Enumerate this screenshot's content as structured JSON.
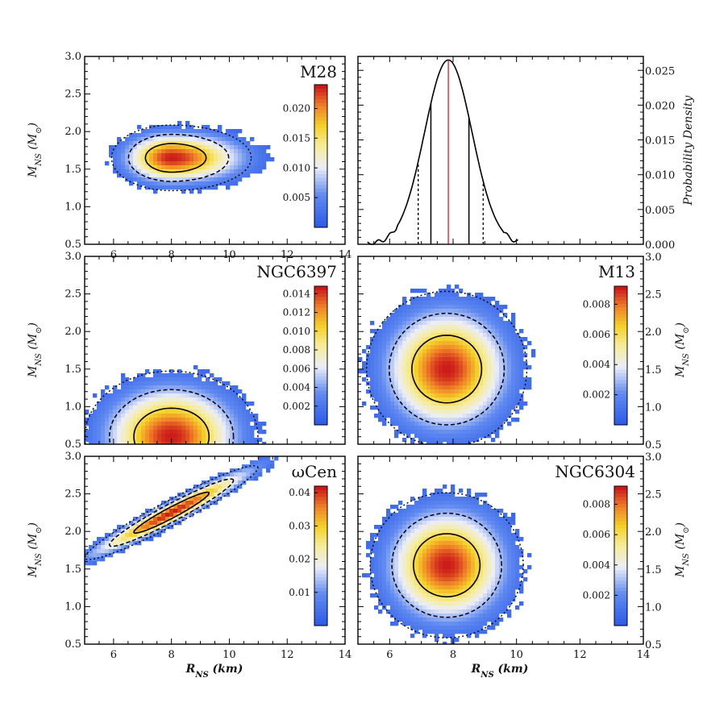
{
  "chart_data": [
    {
      "type": "heatmap",
      "panel": "top-left",
      "title": "M28",
      "xlim": [
        5,
        14
      ],
      "ylim": [
        0.5,
        3.0
      ],
      "xticks": [
        "6",
        "8",
        "10",
        "12",
        "14"
      ],
      "yticks": [
        "0.5",
        "1.0",
        "1.5",
        "2.0",
        "2.5",
        "3.0"
      ],
      "ylabel": "M_NS (M_⊙)",
      "peak": {
        "x": 8.0,
        "y": 1.65
      },
      "spread": {
        "sx": 1.2,
        "sy": 0.19
      },
      "colorbar": {
        "min": 0.0,
        "max": 0.024,
        "ticks": [
          "0.005",
          "0.010",
          "0.015",
          "0.020"
        ]
      }
    },
    {
      "type": "line",
      "panel": "top-right",
      "xlim": [
        5,
        14
      ],
      "ylim": [
        0.0,
        0.027
      ],
      "yticks": [
        "0.000",
        "0.005",
        "0.010",
        "0.015",
        "0.020",
        "0.025"
      ],
      "ylabel": "Probability Density",
      "peak_x": 7.85,
      "peak_y": 0.0265,
      "width": 0.75,
      "inner_interval": [
        7.3,
        8.5
      ],
      "outer_interval": [
        6.9,
        8.95
      ]
    },
    {
      "type": "heatmap",
      "panel": "middle-left",
      "title": "NGC6397",
      "xlim": [
        5,
        14
      ],
      "ylim": [
        0.5,
        3.0
      ],
      "yticks": [
        "0.5",
        "1.0",
        "1.5",
        "2.0",
        "2.5",
        "3.0"
      ],
      "ylabel": "M_NS (M_⊙)",
      "peak": {
        "x": 8.0,
        "y": 0.6
      },
      "spread": {
        "sx": 1.3,
        "sy": 0.38
      },
      "colorbar": {
        "min": 0.0,
        "max": 0.0148,
        "ticks": [
          "0.002",
          "0.004",
          "0.006",
          "0.008",
          "0.010",
          "0.012",
          "0.014"
        ]
      }
    },
    {
      "type": "heatmap",
      "panel": "middle-right",
      "title": "M13",
      "xlim": [
        5,
        14
      ],
      "ylim": [
        0.5,
        3.0
      ],
      "yticks_right": [
        "0.5",
        "1.0",
        "1.5",
        "2.0",
        "2.5",
        "3.0"
      ],
      "ylabel": "M_NS (M_⊙)",
      "peak": {
        "x": 7.8,
        "y": 1.5
      },
      "spread": {
        "sx": 1.1,
        "sy": 0.45
      },
      "colorbar": {
        "min": 0.0,
        "max": 0.0092,
        "ticks": [
          "0.002",
          "0.004",
          "0.006",
          "0.008"
        ]
      }
    },
    {
      "type": "heatmap",
      "panel": "bottom-left",
      "title": "ωCen",
      "xlim": [
        5,
        14
      ],
      "ylim": [
        0.5,
        3.0
      ],
      "xticks": [
        "6",
        "8",
        "10",
        "12",
        "14"
      ],
      "yticks": [
        "0.5",
        "1.0",
        "1.5",
        "2.0",
        "2.5",
        "3.0"
      ],
      "xlabel": "R_NS (km)",
      "ylabel": "M_NS (M_⊙)",
      "peak": {
        "x": 8.0,
        "y": 2.25
      },
      "spread": {
        "sx": 1.4,
        "sy": 0.09
      },
      "colorbar": {
        "min": 0.0,
        "max": 0.042,
        "ticks": [
          "0.01",
          "0.02",
          "0.03",
          "0.04"
        ]
      }
    },
    {
      "type": "heatmap",
      "panel": "bottom-right",
      "title": "NGC6304",
      "xlim": [
        5,
        14
      ],
      "ylim": [
        0.5,
        3.0
      ],
      "xticks": [
        "6",
        "8",
        "10",
        "12",
        "14"
      ],
      "yticks_right": [
        "0.5",
        "1.0",
        "1.5",
        "2.0",
        "2.5",
        "3.0"
      ],
      "xlabel": "R_NS (km)",
      "ylabel": "M_NS (M_⊙)",
      "peak": {
        "x": 7.8,
        "y": 1.55
      },
      "spread": {
        "sx": 1.05,
        "sy": 0.42
      },
      "colorbar": {
        "min": 0.0,
        "max": 0.0092,
        "ticks": [
          "0.002",
          "0.004",
          "0.006",
          "0.008"
        ]
      }
    }
  ]
}
